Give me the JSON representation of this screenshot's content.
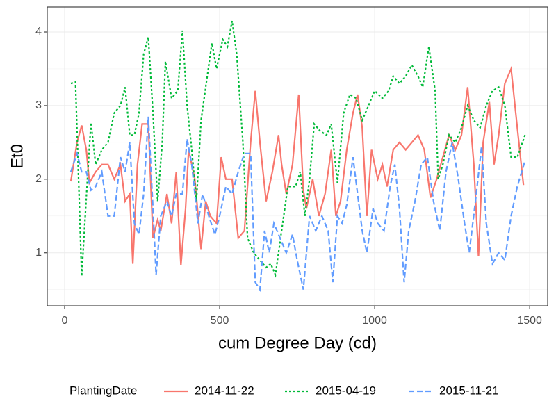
{
  "chart_data": {
    "type": "line",
    "x_label": "cum Degree Day (cd)",
    "y_label": "Et0",
    "legend_title": "PlantingDate",
    "legend": "bottom",
    "grid": true,
    "xlim": [
      -56,
      1558
    ],
    "xticks": [
      0,
      500,
      1000,
      1500
    ],
    "xminor": [
      250,
      750,
      1250
    ],
    "ylim": [
      0.28,
      4.34
    ],
    "yticks": [
      1,
      2,
      3,
      4
    ],
    "yminor": [
      0.5,
      1.5,
      2.5,
      3.5
    ],
    "series": [
      {
        "name": "2014-11-22",
        "color": "#F8766D",
        "dash": "solid",
        "x": [
          20,
          40,
          55,
          70,
          80,
          100,
          120,
          140,
          160,
          180,
          195,
          210,
          220,
          235,
          250,
          270,
          285,
          300,
          310,
          330,
          345,
          360,
          375,
          390,
          400,
          410,
          420,
          440,
          455,
          470,
          490,
          505,
          520,
          540,
          560,
          580,
          600,
          615,
          630,
          650,
          670,
          690,
          700,
          715,
          735,
          755,
          770,
          780,
          800,
          820,
          840,
          860,
          875,
          890,
          910,
          930,
          945,
          960,
          975,
          990,
          1010,
          1025,
          1040,
          1060,
          1080,
          1100,
          1120,
          1140,
          1160,
          1180,
          1200,
          1220,
          1240,
          1260,
          1280,
          1300,
          1320,
          1335,
          1350,
          1370,
          1385,
          1400,
          1420,
          1440,
          1460,
          1480
        ],
        "values": [
          1.97,
          2.5,
          2.73,
          2.4,
          1.95,
          2.1,
          2.2,
          2.2,
          2.0,
          2.2,
          1.7,
          1.8,
          0.85,
          2.2,
          2.75,
          2.75,
          1.2,
          1.45,
          1.3,
          1.8,
          1.4,
          2.1,
          0.83,
          1.6,
          2.4,
          2.2,
          2.0,
          1.05,
          1.7,
          1.5,
          1.4,
          2.3,
          2.0,
          2.0,
          1.2,
          1.3,
          2.5,
          3.2,
          2.5,
          1.7,
          2.1,
          2.6,
          2.2,
          1.8,
          2.2,
          3.15,
          1.85,
          1.6,
          2.0,
          1.5,
          1.8,
          2.4,
          1.5,
          1.7,
          2.4,
          2.9,
          3.15,
          2.7,
          1.5,
          2.4,
          2.0,
          2.2,
          1.9,
          2.4,
          2.5,
          2.4,
          2.5,
          2.6,
          2.4,
          1.75,
          2.0,
          2.3,
          2.6,
          2.4,
          2.6,
          3.25,
          2.2,
          0.95,
          2.5,
          3.05,
          2.2,
          2.6,
          3.3,
          3.5,
          2.7,
          1.92
        ]
      },
      {
        "name": "2015-04-19",
        "color": "#00BA38",
        "dash": "dotted",
        "x": [
          20,
          35,
          55,
          75,
          85,
          100,
          120,
          140,
          160,
          180,
          195,
          210,
          225,
          240,
          255,
          270,
          285,
          300,
          315,
          325,
          345,
          365,
          380,
          395,
          410,
          425,
          440,
          460,
          475,
          490,
          510,
          525,
          540,
          555,
          575,
          590,
          610,
          630,
          650,
          665,
          680,
          700,
          720,
          745,
          760,
          775,
          790,
          805,
          825,
          845,
          860,
          880,
          900,
          920,
          940,
          960,
          980,
          1000,
          1025,
          1045,
          1060,
          1080,
          1100,
          1120,
          1140,
          1155,
          1175,
          1195,
          1205,
          1220,
          1240,
          1260,
          1280,
          1300,
          1320,
          1340,
          1360,
          1380,
          1400,
          1420,
          1440,
          1460,
          1485
        ],
        "values": [
          3.3,
          3.32,
          0.68,
          2.1,
          2.77,
          2.2,
          2.4,
          2.5,
          2.9,
          3.0,
          3.25,
          2.6,
          2.6,
          2.9,
          3.7,
          3.93,
          2.9,
          1.7,
          2.5,
          3.6,
          3.1,
          3.2,
          4.02,
          3.0,
          2.4,
          1.7,
          2.8,
          3.4,
          3.85,
          3.5,
          3.9,
          3.8,
          4.15,
          3.7,
          2.5,
          1.2,
          1.0,
          0.9,
          0.8,
          0.85,
          0.7,
          1.3,
          1.9,
          1.9,
          2.1,
          1.5,
          2.0,
          2.75,
          2.65,
          2.6,
          2.75,
          1.95,
          2.9,
          3.15,
          3.1,
          2.8,
          3.0,
          3.2,
          3.1,
          3.2,
          3.4,
          3.3,
          3.4,
          3.55,
          3.4,
          3.25,
          3.8,
          3.2,
          2.0,
          2.2,
          2.6,
          2.5,
          2.7,
          3.0,
          2.8,
          2.7,
          3.0,
          3.2,
          3.25,
          3.0,
          2.3,
          2.3,
          2.6
        ]
      },
      {
        "name": "2015-11-21",
        "color": "#619CFF",
        "dash": "dashed",
        "x": [
          20,
          40,
          55,
          70,
          85,
          100,
          120,
          140,
          160,
          180,
          195,
          210,
          225,
          240,
          255,
          270,
          285,
          295,
          310,
          330,
          345,
          360,
          380,
          395,
          410,
          430,
          445,
          465,
          485,
          500,
          520,
          540,
          560,
          580,
          600,
          615,
          630,
          645,
          660,
          675,
          695,
          715,
          735,
          750,
          770,
          790,
          810,
          830,
          850,
          865,
          880,
          895,
          910,
          930,
          945,
          960,
          975,
          995,
          1010,
          1030,
          1050,
          1065,
          1080,
          1095,
          1110,
          1130,
          1150,
          1170,
          1190,
          1210,
          1230,
          1250,
          1270,
          1290,
          1305,
          1325,
          1345,
          1360,
          1380,
          1400,
          1420,
          1440,
          1460,
          1485
        ],
        "values": [
          2.1,
          2.35,
          2.1,
          2.1,
          1.85,
          1.9,
          2.1,
          1.5,
          1.5,
          2.3,
          2.1,
          2.5,
          1.4,
          1.25,
          1.8,
          2.85,
          1.6,
          0.7,
          1.5,
          1.7,
          1.5,
          1.8,
          1.8,
          2.55,
          2.2,
          1.4,
          1.8,
          1.5,
          1.25,
          1.5,
          1.9,
          1.8,
          2.1,
          2.35,
          2.35,
          0.6,
          0.5,
          1.3,
          1.0,
          1.4,
          1.2,
          1.0,
          1.25,
          0.9,
          0.5,
          1.5,
          1.3,
          1.5,
          1.3,
          0.6,
          1.5,
          1.4,
          1.65,
          2.3,
          1.8,
          1.3,
          1.0,
          1.6,
          1.4,
          1.3,
          1.9,
          2.2,
          1.6,
          0.6,
          1.3,
          1.7,
          2.2,
          2.3,
          1.7,
          1.3,
          2.1,
          2.5,
          2.0,
          1.4,
          1.0,
          1.7,
          2.45,
          1.4,
          0.85,
          1.0,
          0.9,
          1.5,
          1.9,
          2.25
        ]
      }
    ]
  }
}
